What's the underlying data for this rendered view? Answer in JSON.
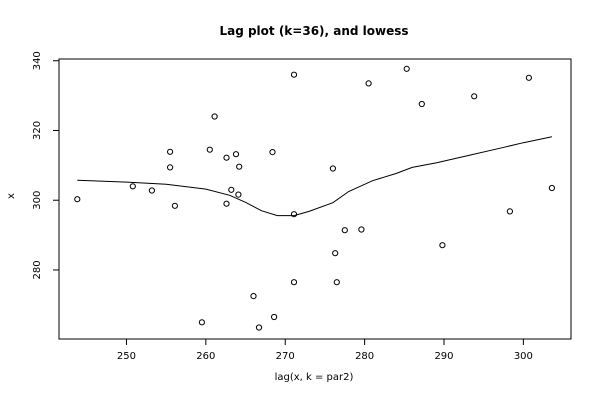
{
  "chart_data": {
    "type": "scatter",
    "title": "Lag plot (k=36), and lowess",
    "xlabel": "lag(x, k = par2)",
    "ylabel": "x",
    "xlim": [
      241.5,
      306
    ],
    "ylim": [
      260.2,
      340.5
    ],
    "xticks": [
      250,
      260,
      270,
      280,
      290,
      300
    ],
    "yticks": [
      280,
      300,
      320,
      340
    ],
    "grid": false,
    "points": [
      [
        243.8,
        300.3
      ],
      [
        250.8,
        304.0
      ],
      [
        253.2,
        302.8
      ],
      [
        255.5,
        313.9
      ],
      [
        255.5,
        309.4
      ],
      [
        256.1,
        298.4
      ],
      [
        259.5,
        265.0
      ],
      [
        260.5,
        314.5
      ],
      [
        261.1,
        324.0
      ],
      [
        262.6,
        312.2
      ],
      [
        262.6,
        299.0
      ],
      [
        263.2,
        303.0
      ],
      [
        263.8,
        313.2
      ],
      [
        264.2,
        309.6
      ],
      [
        264.1,
        301.6
      ],
      [
        266.0,
        272.5
      ],
      [
        266.7,
        263.5
      ],
      [
        268.4,
        313.8
      ],
      [
        268.6,
        266.5
      ],
      [
        271.1,
        336.0
      ],
      [
        271.1,
        296.0
      ],
      [
        271.1,
        276.5
      ],
      [
        276.0,
        309.1
      ],
      [
        276.3,
        284.8
      ],
      [
        276.5,
        276.5
      ],
      [
        277.5,
        291.4
      ],
      [
        279.6,
        291.6
      ],
      [
        280.5,
        333.5
      ],
      [
        285.3,
        337.7
      ],
      [
        287.2,
        327.6
      ],
      [
        289.8,
        287.1
      ],
      [
        293.8,
        329.8
      ],
      [
        298.3,
        296.8
      ],
      [
        300.7,
        335.1
      ],
      [
        303.6,
        303.5
      ]
    ],
    "lowess": [
      [
        243.8,
        305.7
      ],
      [
        250,
        305.2
      ],
      [
        255,
        304.6
      ],
      [
        260,
        303.2
      ],
      [
        263,
        301.4
      ],
      [
        265,
        299.4
      ],
      [
        267,
        297.0
      ],
      [
        269,
        295.6
      ],
      [
        271.1,
        295.6
      ],
      [
        273,
        296.8
      ],
      [
        276,
        299.3
      ],
      [
        278,
        302.5
      ],
      [
        281,
        305.6
      ],
      [
        284,
        307.7
      ],
      [
        286,
        309.4
      ],
      [
        289,
        310.7
      ],
      [
        293,
        312.8
      ],
      [
        297,
        314.9
      ],
      [
        300,
        316.5
      ],
      [
        303.6,
        318.2
      ]
    ]
  }
}
